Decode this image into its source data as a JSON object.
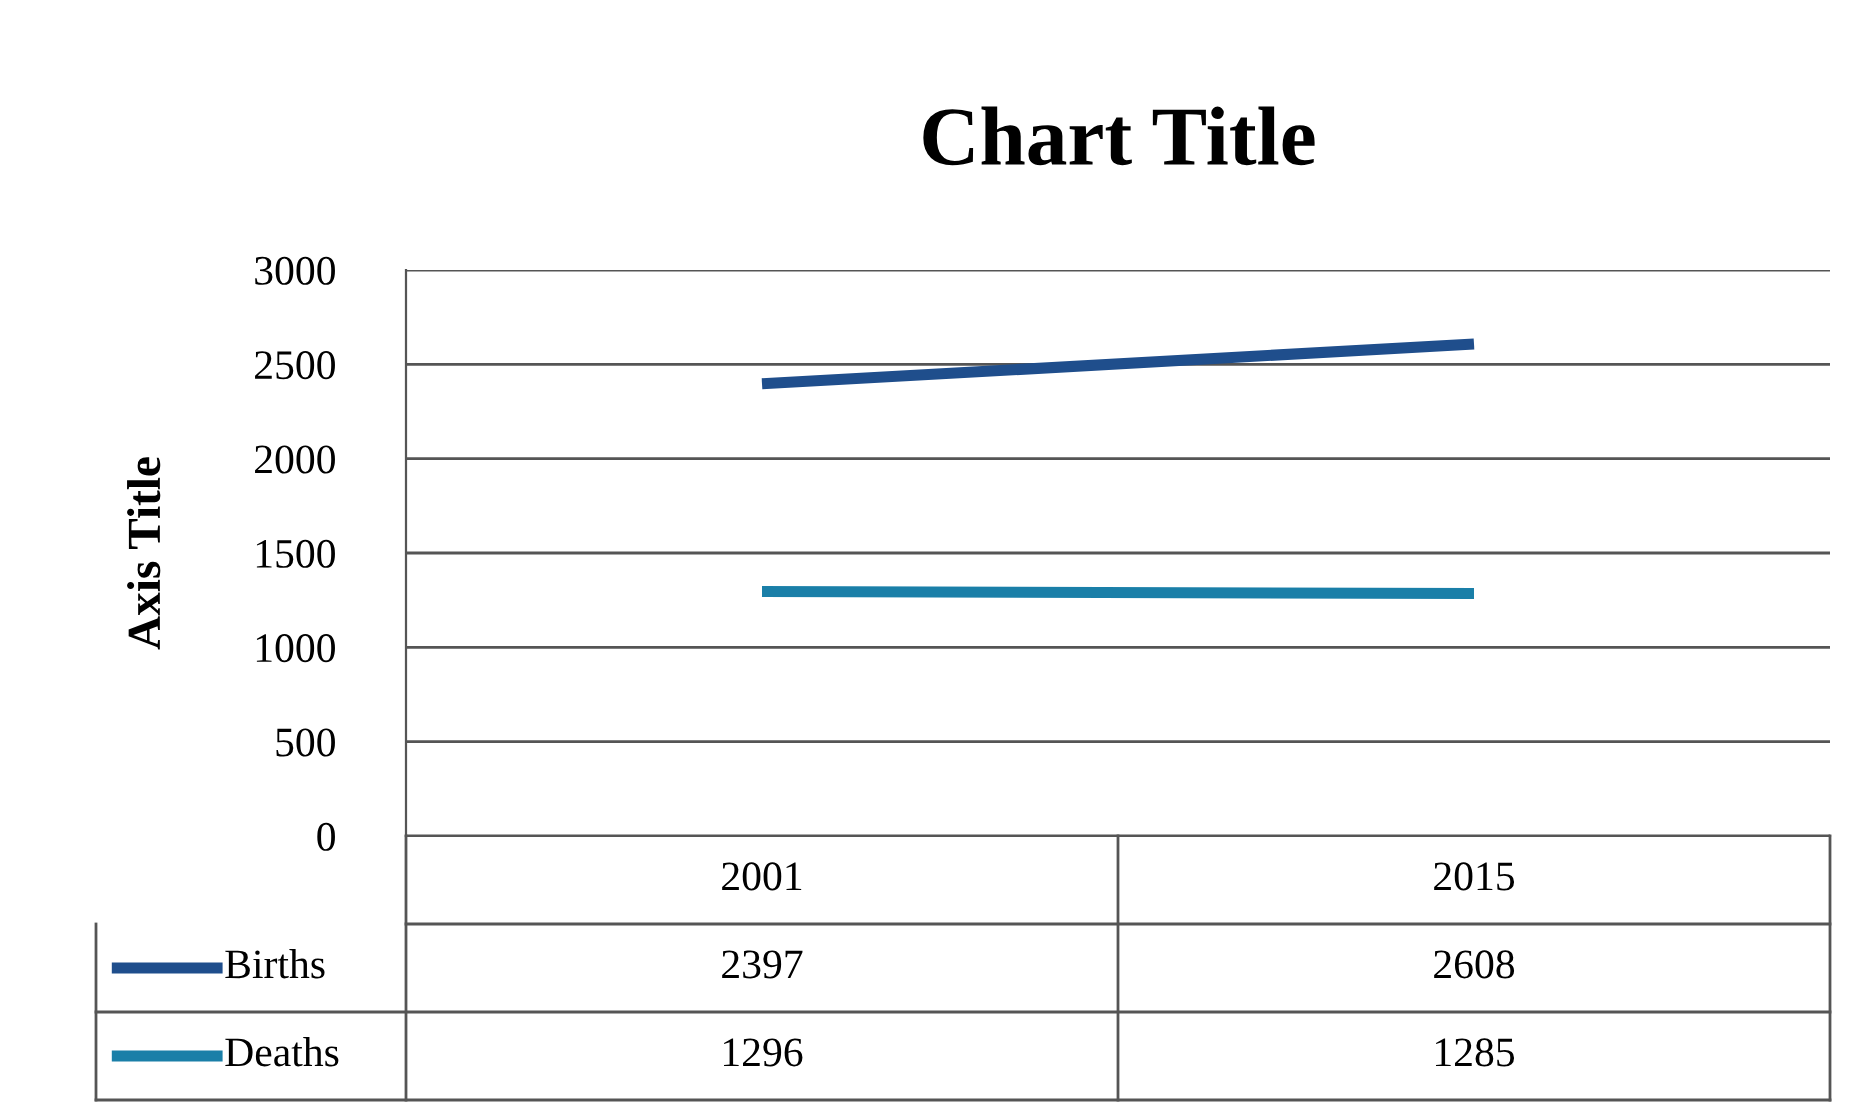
{
  "chart_data": {
    "type": "line",
    "title": "Chart Title",
    "ylabel": "Axis Title",
    "categories": [
      "2001",
      "2015"
    ],
    "series": [
      {
        "name": "Births",
        "color": "#1f4e8c",
        "values": [
          2397,
          2608
        ]
      },
      {
        "name": "Deaths",
        "color": "#1a7fa8",
        "values": [
          1296,
          1285
        ]
      }
    ],
    "ylim": [
      0,
      3000
    ],
    "yticks": [
      0,
      500,
      1000,
      1500,
      2000,
      2500,
      3000
    ],
    "grid": "y",
    "legend": "bottom",
    "data_labels": true,
    "marker": "none",
    "line_style": "solid"
  }
}
